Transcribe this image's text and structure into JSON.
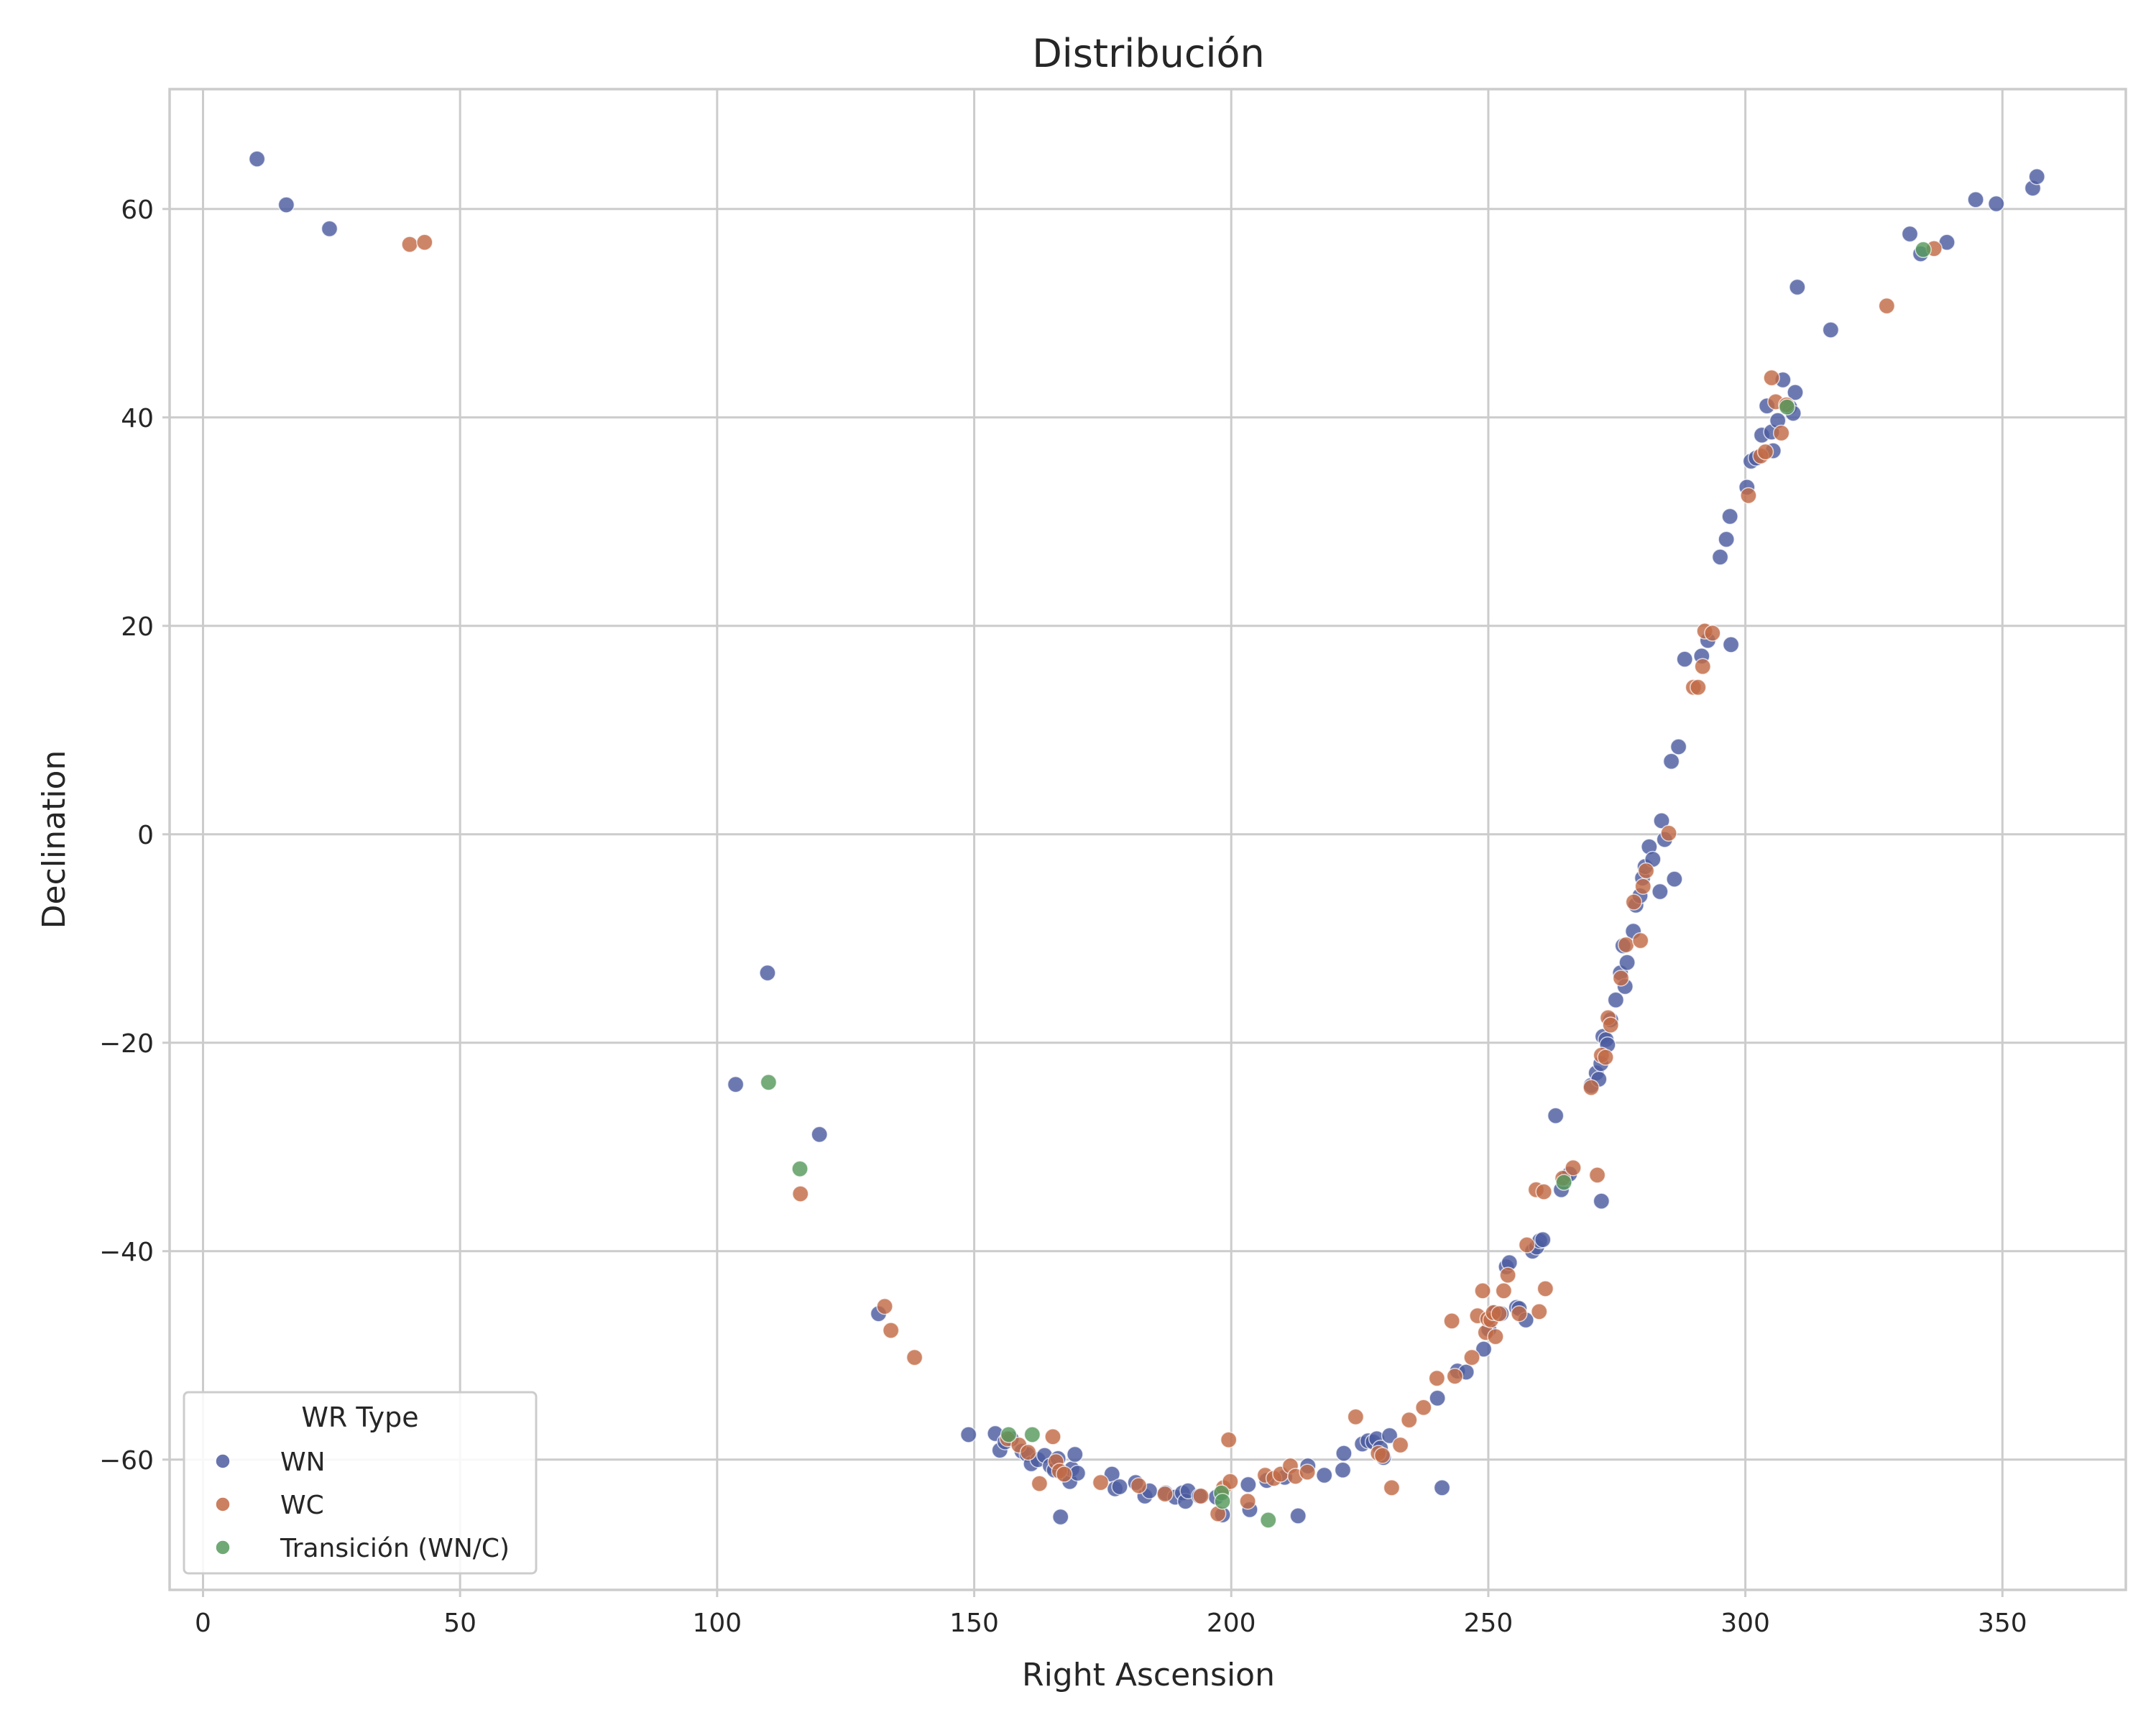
{
  "chart_data": {
    "type": "scatter",
    "title": "Distribución",
    "xlabel": "Right Ascension",
    "ylabel": "Declination",
    "xlim": [
      -6.5,
      374
    ],
    "ylim": [
      -72.5,
      71.5
    ],
    "xticks": [
      0,
      50,
      100,
      150,
      200,
      250,
      300,
      350
    ],
    "yticks": [
      -60,
      -40,
      -20,
      0,
      20,
      40,
      60
    ],
    "xtick_labels": [
      "0",
      "50",
      "100",
      "150",
      "200",
      "250",
      "300",
      "350"
    ],
    "ytick_labels": [
      "−60",
      "−40",
      "−20",
      "0",
      "20",
      "40",
      "60"
    ],
    "grid": true,
    "legend": {
      "title": "WR Type",
      "position": "bottom-left"
    },
    "series": [
      {
        "name": "WN",
        "color": "#4c5ca0",
        "points": [
          [
            10.5,
            64.8
          ],
          [
            16.2,
            60.4
          ],
          [
            24.6,
            58.1
          ],
          [
            103.6,
            -24.0
          ],
          [
            109.8,
            -13.3
          ],
          [
            119.9,
            -28.8
          ],
          [
            131.4,
            -46.0
          ],
          [
            148.9,
            -57.6
          ],
          [
            154.1,
            -57.5
          ],
          [
            155.0,
            -59.1
          ],
          [
            156.0,
            -58.3
          ],
          [
            157.2,
            -58.0
          ],
          [
            159.3,
            -59.2
          ],
          [
            160.3,
            -59.5
          ],
          [
            161.1,
            -60.4
          ],
          [
            162.4,
            -60.0
          ],
          [
            163.7,
            -59.6
          ],
          [
            164.8,
            -60.6
          ],
          [
            165.6,
            -61.0
          ],
          [
            166.3,
            -59.9
          ],
          [
            166.8,
            -65.5
          ],
          [
            167.6,
            -61.4
          ],
          [
            168.6,
            -62.1
          ],
          [
            169.0,
            -60.9
          ],
          [
            169.6,
            -59.5
          ],
          [
            170.1,
            -61.3
          ],
          [
            176.8,
            -61.4
          ],
          [
            177.4,
            -62.8
          ],
          [
            178.3,
            -62.6
          ],
          [
            181.4,
            -62.2
          ],
          [
            183.2,
            -63.5
          ],
          [
            184.1,
            -63.0
          ],
          [
            187.2,
            -63.2
          ],
          [
            189.1,
            -63.6
          ],
          [
            190.5,
            -63.2
          ],
          [
            191.1,
            -64.0
          ],
          [
            191.6,
            -63.0
          ],
          [
            193.8,
            -63.5
          ],
          [
            197.1,
            -63.6
          ],
          [
            198.3,
            -65.3
          ],
          [
            203.3,
            -62.4
          ],
          [
            203.6,
            -64.8
          ],
          [
            206.9,
            -62.0
          ],
          [
            210.4,
            -61.7
          ],
          [
            213.0,
            -65.4
          ],
          [
            214.9,
            -60.6
          ],
          [
            218.1,
            -61.5
          ],
          [
            221.7,
            -61.0
          ],
          [
            221.9,
            -59.4
          ],
          [
            225.5,
            -58.5
          ],
          [
            226.6,
            -58.2
          ],
          [
            227.6,
            -58.3
          ],
          [
            228.3,
            -58.0
          ],
          [
            229.0,
            -58.9
          ],
          [
            229.6,
            -59.8
          ],
          [
            230.8,
            -57.7
          ],
          [
            240.1,
            -54.1
          ],
          [
            241.0,
            -62.7
          ],
          [
            244.0,
            -51.5
          ],
          [
            245.7,
            -51.6
          ],
          [
            249.1,
            -49.4
          ],
          [
            250.1,
            -47.5
          ],
          [
            251.3,
            -45.9
          ],
          [
            252.5,
            -46.0
          ],
          [
            253.5,
            -41.5
          ],
          [
            254.1,
            -41.1
          ],
          [
            255.5,
            -45.4
          ],
          [
            256.0,
            -45.5
          ],
          [
            257.3,
            -46.6
          ],
          [
            258.6,
            -40.0
          ],
          [
            259.4,
            -39.6
          ],
          [
            260.0,
            -39.0
          ],
          [
            260.6,
            -38.9
          ],
          [
            263.1,
            -27.0
          ],
          [
            264.2,
            -34.1
          ],
          [
            265.0,
            -33.0
          ],
          [
            265.8,
            -32.6
          ],
          [
            270.0,
            -24.1
          ],
          [
            271.0,
            -22.9
          ],
          [
            271.5,
            -23.5
          ],
          [
            271.9,
            -22.0
          ],
          [
            272.0,
            -35.2
          ],
          [
            272.3,
            -19.4
          ],
          [
            272.9,
            -19.7
          ],
          [
            273.2,
            -20.2
          ],
          [
            273.8,
            -17.8
          ],
          [
            274.8,
            -15.9
          ],
          [
            275.7,
            -13.3
          ],
          [
            276.2,
            -10.7
          ],
          [
            276.6,
            -14.6
          ],
          [
            277.0,
            -12.3
          ],
          [
            278.2,
            -9.3
          ],
          [
            278.7,
            -6.8
          ],
          [
            279.5,
            -5.9
          ],
          [
            280.0,
            -4.2
          ],
          [
            280.5,
            -3.1
          ],
          [
            281.3,
            -1.2
          ],
          [
            282.0,
            -2.4
          ],
          [
            283.4,
            -5.5
          ],
          [
            283.7,
            1.3
          ],
          [
            284.3,
            -0.5
          ],
          [
            285.6,
            7.0
          ],
          [
            286.2,
            -4.3
          ],
          [
            287.0,
            8.4
          ],
          [
            288.2,
            16.8
          ],
          [
            291.5,
            17.1
          ],
          [
            292.7,
            18.6
          ],
          [
            295.1,
            26.6
          ],
          [
            296.3,
            28.3
          ],
          [
            297.0,
            30.5
          ],
          [
            297.2,
            18.2
          ],
          [
            300.3,
            33.3
          ],
          [
            301.1,
            35.8
          ],
          [
            302.1,
            36.1
          ],
          [
            303.2,
            38.3
          ],
          [
            304.2,
            41.1
          ],
          [
            305.1,
            38.6
          ],
          [
            305.4,
            36.8
          ],
          [
            306.3,
            39.7
          ],
          [
            307.3,
            43.6
          ],
          [
            308.6,
            41.0
          ],
          [
            309.3,
            40.4
          ],
          [
            309.7,
            42.4
          ],
          [
            310.1,
            52.5
          ],
          [
            316.6,
            48.4
          ],
          [
            332.0,
            57.6
          ],
          [
            334.1,
            55.7
          ],
          [
            339.2,
            56.8
          ],
          [
            344.8,
            60.9
          ],
          [
            348.8,
            60.5
          ],
          [
            355.9,
            62.0
          ],
          [
            356.7,
            63.1
          ]
        ]
      },
      {
        "name": "WC",
        "color": "#c26a45",
        "points": [
          [
            40.2,
            56.6
          ],
          [
            43.1,
            56.8
          ],
          [
            116.2,
            -34.5
          ],
          [
            132.6,
            -45.3
          ],
          [
            133.8,
            -47.6
          ],
          [
            138.4,
            -50.2
          ],
          [
            156.5,
            -58.0
          ],
          [
            158.7,
            -58.6
          ],
          [
            160.5,
            -59.3
          ],
          [
            162.7,
            -62.3
          ],
          [
            165.3,
            -57.8
          ],
          [
            165.9,
            -60.2
          ],
          [
            166.6,
            -61.1
          ],
          [
            167.5,
            -61.4
          ],
          [
            174.6,
            -62.2
          ],
          [
            182.0,
            -62.5
          ],
          [
            187.1,
            -63.3
          ],
          [
            194.1,
            -63.5
          ],
          [
            197.4,
            -65.2
          ],
          [
            198.5,
            -62.7
          ],
          [
            199.5,
            -58.1
          ],
          [
            199.8,
            -62.1
          ],
          [
            203.2,
            -64.0
          ],
          [
            206.6,
            -61.5
          ],
          [
            208.3,
            -61.8
          ],
          [
            209.6,
            -61.4
          ],
          [
            211.5,
            -60.6
          ],
          [
            212.5,
            -61.6
          ],
          [
            214.8,
            -61.2
          ],
          [
            224.2,
            -55.9
          ],
          [
            228.6,
            -59.4
          ],
          [
            229.4,
            -59.6
          ],
          [
            231.2,
            -62.7
          ],
          [
            232.9,
            -58.6
          ],
          [
            234.6,
            -56.2
          ],
          [
            237.4,
            -55.0
          ],
          [
            240.0,
            -52.2
          ],
          [
            242.9,
            -46.7
          ],
          [
            243.5,
            -52.0
          ],
          [
            246.8,
            -50.2
          ],
          [
            247.9,
            -46.2
          ],
          [
            248.9,
            -43.8
          ],
          [
            249.5,
            -47.8
          ],
          [
            249.9,
            -46.5
          ],
          [
            250.5,
            -46.6
          ],
          [
            251.0,
            -45.9
          ],
          [
            251.4,
            -48.2
          ],
          [
            252.1,
            -46.0
          ],
          [
            253.0,
            -43.8
          ],
          [
            253.8,
            -42.3
          ],
          [
            256.0,
            -46.0
          ],
          [
            257.5,
            -39.4
          ],
          [
            259.3,
            -34.1
          ],
          [
            259.9,
            -45.8
          ],
          [
            260.8,
            -34.3
          ],
          [
            261.1,
            -43.6
          ],
          [
            264.5,
            -33.0
          ],
          [
            266.5,
            -32.0
          ],
          [
            270.0,
            -24.3
          ],
          [
            271.2,
            -32.7
          ],
          [
            272.0,
            -21.2
          ],
          [
            272.8,
            -21.4
          ],
          [
            273.3,
            -17.6
          ],
          [
            273.8,
            -18.3
          ],
          [
            275.8,
            -13.8
          ],
          [
            276.8,
            -10.6
          ],
          [
            278.3,
            -6.5
          ],
          [
            279.6,
            -10.2
          ],
          [
            280.1,
            -5.0
          ],
          [
            280.7,
            -3.5
          ],
          [
            285.1,
            0.1
          ],
          [
            289.9,
            14.1
          ],
          [
            290.8,
            14.1
          ],
          [
            291.7,
            16.1
          ],
          [
            292.1,
            19.5
          ],
          [
            293.6,
            19.3
          ],
          [
            300.6,
            32.5
          ],
          [
            303.0,
            36.3
          ],
          [
            303.9,
            36.7
          ],
          [
            305.1,
            43.8
          ],
          [
            305.9,
            41.5
          ],
          [
            307.0,
            38.5
          ],
          [
            308.0,
            41.2
          ],
          [
            327.5,
            50.7
          ],
          [
            336.7,
            56.2
          ]
        ]
      },
      {
        "name": "Transición (WN/C)",
        "color": "#579a5d",
        "points": [
          [
            110.0,
            -23.8
          ],
          [
            116.1,
            -32.1
          ],
          [
            156.7,
            -57.6
          ],
          [
            161.3,
            -57.6
          ],
          [
            198.1,
            -63.2
          ],
          [
            198.3,
            -64.0
          ],
          [
            207.2,
            -65.8
          ],
          [
            264.7,
            -33.4
          ],
          [
            308.1,
            41.0
          ],
          [
            334.6,
            56.1
          ]
        ]
      }
    ]
  }
}
